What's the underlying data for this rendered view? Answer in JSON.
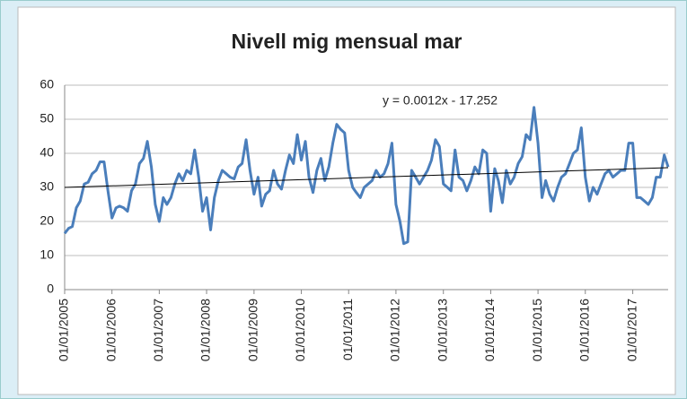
{
  "chart_data": {
    "type": "line",
    "title": "Nivell mig mensual mar",
    "x": [
      "2005-01-01",
      "2005-02-01",
      "2005-03-01",
      "2005-04-01",
      "2005-05-01",
      "2005-06-01",
      "2005-07-01",
      "2005-08-01",
      "2005-09-01",
      "2005-10-01",
      "2005-11-01",
      "2005-12-01",
      "2006-01-01",
      "2006-02-01",
      "2006-03-01",
      "2006-04-01",
      "2006-05-01",
      "2006-06-01",
      "2006-07-01",
      "2006-08-01",
      "2006-09-01",
      "2006-10-01",
      "2006-11-01",
      "2006-12-01",
      "2007-01-01",
      "2007-02-01",
      "2007-03-01",
      "2007-04-01",
      "2007-05-01",
      "2007-06-01",
      "2007-07-01",
      "2007-08-01",
      "2007-09-01",
      "2007-10-01",
      "2007-11-01",
      "2007-12-01",
      "2008-01-01",
      "2008-02-01",
      "2008-03-01",
      "2008-04-01",
      "2008-05-01",
      "2008-06-01",
      "2008-07-01",
      "2008-08-01",
      "2008-09-01",
      "2008-10-01",
      "2008-11-01",
      "2008-12-01",
      "2009-01-01",
      "2009-02-01",
      "2009-03-01",
      "2009-04-01",
      "2009-05-01",
      "2009-06-01",
      "2009-07-01",
      "2009-08-01",
      "2009-09-01",
      "2009-10-01",
      "2009-11-01",
      "2009-12-01",
      "2010-01-01",
      "2010-02-01",
      "2010-03-01",
      "2010-04-01",
      "2010-05-01",
      "2010-06-01",
      "2010-07-01",
      "2010-08-01",
      "2010-09-01",
      "2010-10-01",
      "2010-11-01",
      "2010-12-01",
      "2011-01-01",
      "2011-02-01",
      "2011-03-01",
      "2011-04-01",
      "2011-05-01",
      "2011-06-01",
      "2011-07-01",
      "2011-08-01",
      "2011-09-01",
      "2011-10-01",
      "2011-11-01",
      "2011-12-01",
      "2012-01-01",
      "2012-02-01",
      "2012-03-01",
      "2012-04-01",
      "2012-05-01",
      "2012-06-01",
      "2012-07-01",
      "2012-08-01",
      "2012-09-01",
      "2012-10-01",
      "2012-11-01",
      "2012-12-01",
      "2013-01-01",
      "2013-02-01",
      "2013-03-01",
      "2013-04-01",
      "2013-05-01",
      "2013-06-01",
      "2013-07-01",
      "2013-08-01",
      "2013-09-01",
      "2013-10-01",
      "2013-11-01",
      "2013-12-01",
      "2014-01-01",
      "2014-02-01",
      "2014-03-01",
      "2014-04-01",
      "2014-05-01",
      "2014-06-01",
      "2014-07-01",
      "2014-08-01",
      "2014-09-01",
      "2014-10-01",
      "2014-11-01",
      "2014-12-01",
      "2015-01-01",
      "2015-02-01",
      "2015-03-01",
      "2015-04-01",
      "2015-05-01",
      "2015-06-01",
      "2015-07-01",
      "2015-08-01",
      "2015-09-01",
      "2015-10-01",
      "2015-11-01",
      "2015-12-01",
      "2016-01-01",
      "2016-02-01",
      "2016-03-01",
      "2016-04-01",
      "2016-05-01",
      "2016-06-01",
      "2016-07-01",
      "2016-08-01",
      "2016-09-01",
      "2016-10-01",
      "2016-11-01",
      "2016-12-01",
      "2017-01-01",
      "2017-02-01",
      "2017-03-01",
      "2017-04-01",
      "2017-05-01",
      "2017-06-01",
      "2017-07-01",
      "2017-08-01",
      "2017-09-01",
      "2017-10-01"
    ],
    "series": [
      {
        "name": "Nivell mig mensual mar",
        "color": "#4a7ebb",
        "values": [
          16.5,
          18,
          18.5,
          24,
          26,
          31,
          31.5,
          34,
          35,
          37.5,
          37.5,
          29,
          21,
          24,
          24.5,
          24,
          23,
          29,
          31,
          37,
          38.5,
          43.5,
          36,
          25,
          20,
          27,
          25,
          27,
          31,
          34,
          32,
          35,
          34,
          41,
          33,
          23,
          27,
          17.5,
          27,
          32,
          35,
          34,
          33,
          32.5,
          36,
          37,
          44,
          35,
          28,
          33,
          24.5,
          28,
          29,
          35,
          31,
          29.5,
          35,
          39.5,
          37,
          45.5,
          38,
          43.5,
          33,
          28.5,
          35,
          38.5,
          32,
          36,
          43,
          48.5,
          47,
          46,
          35,
          30,
          28.5,
          27,
          30,
          31,
          32,
          35,
          33,
          34,
          37,
          43,
          25,
          20,
          13.5,
          14,
          35,
          33,
          31,
          33,
          35,
          38,
          44,
          42,
          31,
          30,
          29,
          41,
          33,
          32,
          29,
          32,
          36,
          34,
          41,
          40,
          23,
          35.5,
          32,
          25.5,
          35,
          31,
          33,
          37,
          39,
          45.5,
          44,
          53.5,
          43,
          27,
          32,
          28,
          26,
          30,
          33,
          34,
          37,
          40,
          41,
          47.5,
          33,
          26,
          30,
          28,
          31,
          34,
          35,
          33,
          34,
          35,
          35,
          43,
          43,
          27,
          27,
          26,
          25,
          27,
          33,
          33,
          39.5,
          36
        ]
      }
    ],
    "trendline": {
      "label": "y = 0.0012x - 17.252",
      "color": "#000000",
      "values": [
        30,
        35.8
      ]
    },
    "xlim": [
      "2005-01-01",
      "2017-10-01"
    ],
    "xticks": [
      {
        "value": "2005-01-01",
        "label": "01/01/2005"
      },
      {
        "value": "2006-01-01",
        "label": "01/01/2006"
      },
      {
        "value": "2007-01-01",
        "label": "01/01/2007"
      },
      {
        "value": "2008-01-01",
        "label": "01/01/2008"
      },
      {
        "value": "2009-01-01",
        "label": "01/01/2009"
      },
      {
        "value": "2010-01-01",
        "label": "01/01/2010"
      },
      {
        "value": "2011-01-01",
        "label": "01/01/2011"
      },
      {
        "value": "2012-01-01",
        "label": "01/01/2012"
      },
      {
        "value": "2013-01-01",
        "label": "01/01/2013"
      },
      {
        "value": "2014-01-01",
        "label": "01/01/2014"
      },
      {
        "value": "2015-01-01",
        "label": "01/01/2015"
      },
      {
        "value": "2016-01-01",
        "label": "01/01/2016"
      },
      {
        "value": "2017-01-01",
        "label": "01/01/2017"
      }
    ],
    "ylim": [
      0,
      60
    ],
    "yticks": [
      0,
      10,
      20,
      30,
      40,
      50,
      60
    ],
    "grid": true
  }
}
